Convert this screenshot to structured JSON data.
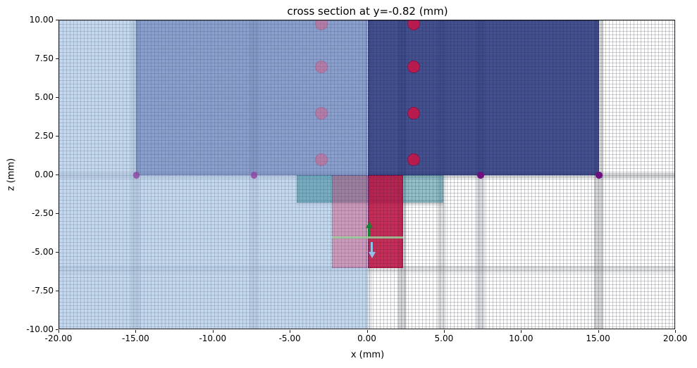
{
  "chart_data": {
    "type": "heatmap",
    "title": "cross section at y=-0.82 (mm)",
    "xlabel": "x (mm)",
    "ylabel": "z (mm)",
    "xlim": [
      -20,
      20
    ],
    "zlim": [
      -10,
      10
    ],
    "grid": true,
    "legend": false,
    "xticks": [
      -20,
      -15,
      -10,
      -5,
      0,
      5,
      10,
      15,
      20
    ],
    "xtick_labels": [
      "-20.00",
      "-15.00",
      "-10.00",
      "-5.00",
      "0.00",
      "5.00",
      "10.00",
      "15.00",
      "20.00"
    ],
    "zticks": [
      10,
      7.5,
      5,
      2.5,
      0,
      -2.5,
      -5,
      -7.5,
      -10
    ],
    "ztick_labels": [
      "10.00",
      "7.50",
      "5.00",
      "2.50",
      "0.00",
      "-2.50",
      "-5.00",
      "-7.50",
      "-10.00"
    ],
    "regions": [
      {
        "name": "light-blue-region",
        "x0": -20,
        "x1": 0,
        "z0": -10,
        "z1": 10,
        "color": "rgba(167,196,228,0.68)"
      },
      {
        "name": "slate-blue-region",
        "x0": -15,
        "x1": 0,
        "z0": 0,
        "z1": 10,
        "color": "rgba(48,68,150,0.38)",
        "border": "rgba(40,50,110,0.35)"
      },
      {
        "name": "navy-region",
        "x0": 0,
        "x1": 15,
        "z0": 0,
        "z1": 10,
        "color": "rgba(30,45,118,0.83)",
        "border": "rgba(12,18,70,0.6)"
      },
      {
        "name": "teal-region",
        "x0": -4.6,
        "x1": 4.9,
        "z0": -1.77,
        "z1": 0,
        "color": "rgba(42,128,148,0.5)",
        "border": "rgba(20,70,85,0.4)"
      },
      {
        "name": "pink-region",
        "x0": -2.3,
        "x1": 0,
        "z0": -6,
        "z1": 0,
        "color": "rgba(215,60,110,0.40)",
        "border": "rgba(40,45,110,0.45)"
      },
      {
        "name": "crimson-region",
        "x0": 0,
        "x1": 2.3,
        "z0": -6,
        "z1": 0,
        "color": "rgba(185,10,60,0.85)",
        "border": "rgba(25,30,95,0.85)"
      }
    ],
    "mesh_bands": {
      "vertical": [
        {
          "x0": -15.35,
          "x1": -14.72,
          "alpha": 0.75
        },
        {
          "x0": -7.68,
          "x1": -7.05,
          "alpha": 0.7
        },
        {
          "x0": -0.18,
          "x1": 0.28,
          "alpha": 0.45
        },
        {
          "x0": 2.0,
          "x1": 2.55,
          "alpha": 0.8
        },
        {
          "x0": 4.55,
          "x1": 5.05,
          "alpha": 0.6
        },
        {
          "x0": 7.05,
          "x1": 7.62,
          "alpha": 0.7
        },
        {
          "x0": 14.68,
          "x1": 15.3,
          "alpha": 0.8
        }
      ],
      "horizontal": [
        {
          "z0": -0.18,
          "z1": 0.14,
          "alpha": 0.8
        },
        {
          "z0": -6.28,
          "z1": -5.84,
          "alpha": 0.55
        },
        {
          "z0": -1.95,
          "z1": -1.62,
          "x0": -4.6,
          "x1": 4.9,
          "alpha": 0.5
        }
      ]
    },
    "contact_line": {
      "x0": -2.3,
      "x1": 2.3,
      "z": -4.0,
      "color": "rgba(150,205,150,0.85)"
    },
    "markers": [
      {
        "name": "red-circle-marker",
        "x": 3.0,
        "z": 9.8,
        "r": 0.42,
        "fill": "rgba(200,20,70,0.88)",
        "border": "rgba(25,30,95,0.9)"
      },
      {
        "name": "red-circle-marker",
        "x": 3.0,
        "z": 7.0,
        "r": 0.42,
        "fill": "rgba(200,20,70,0.88)",
        "border": "rgba(25,30,95,0.9)"
      },
      {
        "name": "red-circle-marker",
        "x": 3.0,
        "z": 4.0,
        "r": 0.42,
        "fill": "rgba(200,20,70,0.88)",
        "border": "rgba(25,30,95,0.9)"
      },
      {
        "name": "red-circle-marker",
        "x": 3.0,
        "z": 1.0,
        "r": 0.42,
        "fill": "rgba(200,20,70,0.88)",
        "border": "rgba(25,30,95,0.9)"
      },
      {
        "name": "pink-circle-marker",
        "x": -3.0,
        "z": 9.8,
        "r": 0.42,
        "fill": "rgba(215,90,130,0.5)",
        "border": "rgba(60,70,130,0.35)"
      },
      {
        "name": "pink-circle-marker",
        "x": -3.0,
        "z": 7.0,
        "r": 0.42,
        "fill": "rgba(215,90,130,0.5)",
        "border": "rgba(60,70,130,0.35)"
      },
      {
        "name": "pink-circle-marker",
        "x": -3.0,
        "z": 4.0,
        "r": 0.42,
        "fill": "rgba(215,90,130,0.5)",
        "border": "rgba(60,70,130,0.35)"
      },
      {
        "name": "pink-circle-marker",
        "x": -3.0,
        "z": 1.0,
        "r": 0.42,
        "fill": "rgba(215,90,130,0.5)",
        "border": "rgba(60,70,130,0.35)"
      },
      {
        "name": "purple-dot-marker",
        "x": -15.0,
        "z": 0.0,
        "r": 0.21,
        "fill": "rgba(145,70,165,0.85)"
      },
      {
        "name": "purple-dot-marker",
        "x": -7.35,
        "z": 0.0,
        "r": 0.21,
        "fill": "rgba(145,70,165,0.85)"
      },
      {
        "name": "purple-dot-marker",
        "x": 7.35,
        "z": 0.0,
        "r": 0.23,
        "fill": "rgba(112,14,128,1)"
      },
      {
        "name": "purple-dot-marker",
        "x": 15.0,
        "z": 0.0,
        "r": 0.23,
        "fill": "rgba(112,14,128,1)"
      }
    ],
    "arrows": [
      {
        "name": "green-up-arrow",
        "x": 0.1,
        "z_tail": -3.95,
        "z_head": -3.0,
        "color": "#1e7d33"
      },
      {
        "name": "blue-down-arrow",
        "x": 0.28,
        "z_tail": -4.3,
        "z_head": -5.35,
        "color": "#90c2e7"
      }
    ]
  }
}
